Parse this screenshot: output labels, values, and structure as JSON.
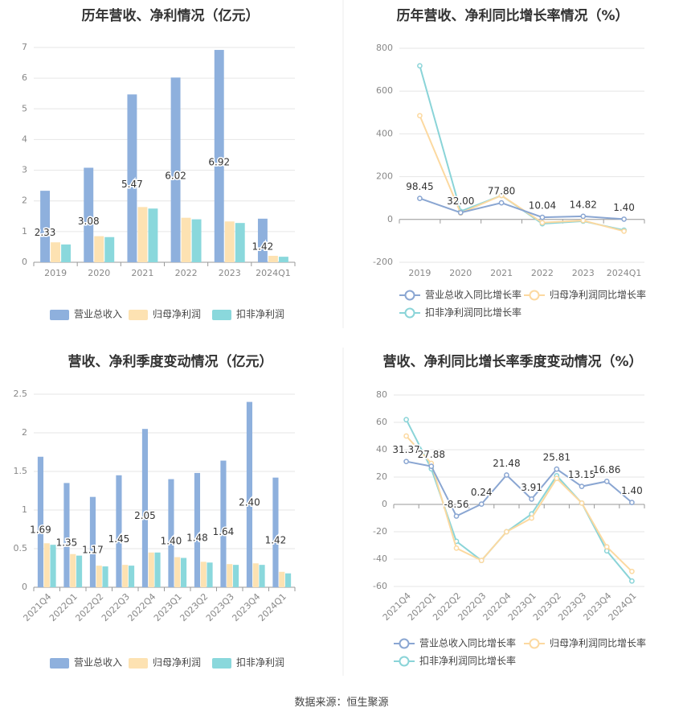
{
  "source": "数据来源：恒生聚源",
  "colors": {
    "revenue": "#8eb0dd",
    "net_profit": "#fde2b2",
    "deducted_profit": "#8ad8dc",
    "line_revenue": "#8aa6d2",
    "line_net": "#fcd9a0",
    "line_deducted": "#8ad4d8",
    "grid": "#e6e6e6",
    "axis_text": "#888888",
    "title": "#333333"
  },
  "chart_data": [
    {
      "type": "bar",
      "title": "历年营收、净利情况（亿元）",
      "categories": [
        "2019",
        "2020",
        "2021",
        "2022",
        "2023",
        "2024Q1"
      ],
      "ylim": [
        0,
        7
      ],
      "yticks": [
        "0",
        "1",
        "2",
        "3",
        "4",
        "5",
        "6",
        "7"
      ],
      "series": [
        {
          "name": "营业总收入",
          "values": [
            2.33,
            3.08,
            5.47,
            6.02,
            6.92,
            1.42
          ]
        },
        {
          "name": "归母净利润",
          "values": [
            0.65,
            0.85,
            1.8,
            1.45,
            1.33,
            0.21
          ]
        },
        {
          "name": "扣非净利润",
          "values": [
            0.58,
            0.82,
            1.75,
            1.4,
            1.28,
            0.18
          ]
        }
      ],
      "data_labels": [
        "2.33",
        "3.08",
        "5.47",
        "6.02",
        "6.92",
        "1.42"
      ],
      "legend": "bottom"
    },
    {
      "type": "line",
      "title": "历年营收、净利同比增长率情况（%）",
      "categories": [
        "2019",
        "2020",
        "2021",
        "2022",
        "2023",
        "2024Q1"
      ],
      "ylim": [
        -200,
        800
      ],
      "yticks": [
        "-200",
        "0",
        "200",
        "400",
        "600",
        "800"
      ],
      "series": [
        {
          "name": "营业总收入同比增长率",
          "values": [
            98.45,
            32.0,
            77.8,
            10.04,
            14.82,
            1.4
          ]
        },
        {
          "name": "归母净利润同比增长率",
          "values": [
            485,
            30,
            112,
            -15,
            -5,
            -55
          ]
        },
        {
          "name": "扣非净利润同比增长率",
          "values": [
            718,
            38,
            112,
            -20,
            -8,
            -50
          ]
        }
      ],
      "data_labels": [
        "98.45",
        "32.00",
        "77.80",
        "10.04",
        "14.82",
        "1.40"
      ],
      "legend": "bottom"
    },
    {
      "type": "bar",
      "title": "营收、净利季度变动情况（亿元）",
      "categories": [
        "2021Q4",
        "2022Q1",
        "2022Q2",
        "2022Q3",
        "2022Q4",
        "2023Q1",
        "2023Q2",
        "2023Q3",
        "2023Q4",
        "2024Q1"
      ],
      "ylim": [
        0,
        2.5
      ],
      "yticks": [
        "0",
        "0.5",
        "1",
        "1.5",
        "2",
        "2.5"
      ],
      "series": [
        {
          "name": "营业总收入",
          "values": [
            1.69,
            1.35,
            1.17,
            1.45,
            2.05,
            1.4,
            1.48,
            1.64,
            2.4,
            1.42
          ]
        },
        {
          "name": "归母净利润",
          "values": [
            0.57,
            0.43,
            0.28,
            0.29,
            0.45,
            0.39,
            0.33,
            0.3,
            0.31,
            0.2
          ]
        },
        {
          "name": "扣非净利润",
          "values": [
            0.55,
            0.41,
            0.27,
            0.28,
            0.45,
            0.38,
            0.32,
            0.29,
            0.29,
            0.18
          ]
        }
      ],
      "data_labels": [
        "1.69",
        "1.35",
        "1.17",
        "1.45",
        "2.05",
        "1.40",
        "1.48",
        "1.64",
        "2.40",
        "1.42"
      ],
      "legend": "bottom"
    },
    {
      "type": "line",
      "title": "营收、净利同比增长率季度变动情况（%）",
      "categories": [
        "2021Q4",
        "2022Q1",
        "2022Q2",
        "2022Q3",
        "2022Q4",
        "2023Q1",
        "2023Q2",
        "2023Q3",
        "2023Q4",
        "2024Q1"
      ],
      "ylim": [
        -60,
        80
      ],
      "yticks": [
        "-60",
        "-40",
        "-20",
        "0",
        "20",
        "40",
        "60",
        "80"
      ],
      "series": [
        {
          "name": "营业总收入同比增长率",
          "values": [
            31.37,
            27.88,
            -8.56,
            0.24,
            21.48,
            3.91,
            25.81,
            13.15,
            16.86,
            1.4
          ]
        },
        {
          "name": "归母净利润同比增长率",
          "values": [
            50,
            30,
            -32,
            -41,
            -20,
            -10,
            19,
            1,
            -31,
            -49
          ]
        },
        {
          "name": "扣非净利润同比增长率",
          "values": [
            62,
            26,
            -27,
            -41,
            -20,
            -7,
            21,
            1,
            -34,
            -56
          ]
        }
      ],
      "data_labels": [
        "31.37",
        "27.88",
        "-8.56",
        "0.24",
        "21.48",
        "3.91",
        "25.81",
        "13.15",
        "16.86",
        "1.40"
      ],
      "legend": "bottom"
    }
  ]
}
